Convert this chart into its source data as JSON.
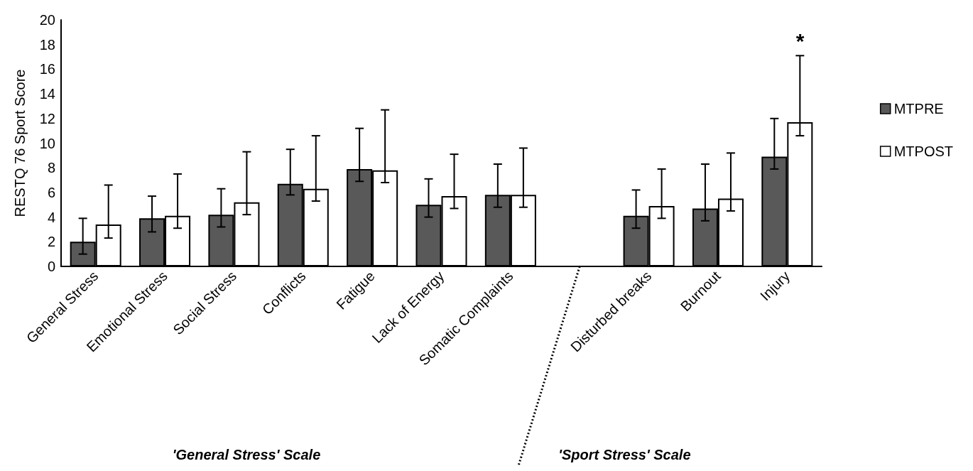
{
  "chart_data": {
    "type": "bar",
    "ylabel": "RESTQ 76 Sport Score",
    "categories": [
      "General Stress",
      "Emotional Stress",
      "Social Stress",
      "Conflicts",
      "Fatigue",
      "Lack of Energy",
      "Somatic Complaints",
      null,
      "Disturbed breaks",
      "Burnout",
      "Injury"
    ],
    "series": [
      {
        "name": "MTPRE",
        "color": "#595959",
        "values": [
          2.0,
          3.9,
          4.2,
          6.7,
          7.9,
          5.0,
          5.8,
          null,
          4.1,
          4.7,
          8.9
        ],
        "errors": [
          [
            1.0,
            3.9
          ],
          [
            2.8,
            5.7
          ],
          [
            3.2,
            6.3
          ],
          [
            5.8,
            9.5
          ],
          [
            6.9,
            11.2
          ],
          [
            4.0,
            7.1
          ],
          [
            4.8,
            8.3
          ],
          null,
          [
            3.1,
            6.2
          ],
          [
            3.7,
            8.3
          ],
          [
            7.9,
            12.0
          ]
        ]
      },
      {
        "name": "MTPOST",
        "color": "#ffffff",
        "values": [
          3.4,
          4.1,
          5.2,
          6.3,
          7.8,
          5.7,
          5.8,
          null,
          4.9,
          5.5,
          11.7
        ],
        "errors": [
          [
            2.3,
            6.6
          ],
          [
            3.1,
            7.5
          ],
          [
            4.2,
            9.3
          ],
          [
            5.3,
            10.6
          ],
          [
            6.8,
            12.7
          ],
          [
            4.7,
            9.1
          ],
          [
            4.8,
            9.6
          ],
          null,
          [
            3.9,
            7.9
          ],
          [
            4.5,
            9.2
          ],
          [
            10.6,
            17.1
          ]
        ]
      }
    ],
    "ylim": [
      0,
      20
    ],
    "yticks": [
      0,
      2,
      4,
      6,
      8,
      10,
      12,
      14,
      16,
      18,
      20
    ],
    "grid": false,
    "legend": "right",
    "annotations": [
      "*",
      "'General Stress' Scale",
      "'Sport Stress' Scale"
    ]
  }
}
